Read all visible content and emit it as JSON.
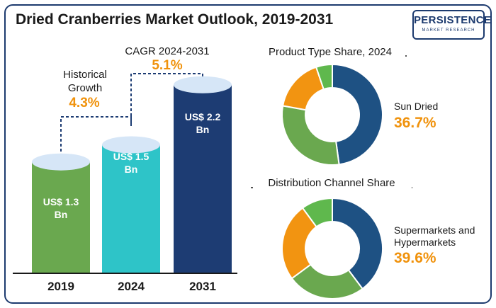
{
  "header": {
    "title": "Dried Cranberries Market Outlook, 2019-2031",
    "logo_text": "PERSISTENCE",
    "logo_subtext": "MARKET RESEARCH"
  },
  "annotations": {
    "historical_label_line1": "Historical",
    "historical_label_line2": "Growth",
    "historical_value": "4.3%",
    "cagr_label": "CAGR 2024-2031",
    "cagr_value": "5.1%"
  },
  "colors": {
    "bar_2019": "#6aa84f",
    "bar_2024": "#2ec4c8",
    "bar_2031": "#1d3c73",
    "bar_top": "#d6e6f7",
    "accent": "#f0920c",
    "donut_blue": "#1e5183",
    "donut_green": "#6aa84f",
    "donut_orange": "#f29411",
    "donut_lightgreen": "#5fb84d"
  },
  "chart_data": [
    {
      "type": "bar",
      "categories": [
        "2019",
        "2024",
        "2031"
      ],
      "values": [
        1.3,
        1.5,
        2.2
      ],
      "value_labels_line1": [
        "US$ 1.3",
        "US$ 1.5",
        "US$ 2.2"
      ],
      "value_labels_line2": [
        "Bn",
        "Bn",
        "Bn"
      ],
      "unit": "US$ Bn",
      "xlabel": "",
      "ylabel": ""
    },
    {
      "type": "pie",
      "title": "Product Type Share, 2024",
      "highlight_label": "Sun Dried",
      "highlight_value": "36.7%",
      "values": [
        36.7,
        23.0,
        13.0,
        4.0
      ]
    },
    {
      "type": "pie",
      "title": "Distribution Channel Share",
      "highlight_label_line1": "Supermarkets and",
      "highlight_label_line2": "Hypermarkets",
      "highlight_value": "39.6%",
      "values": [
        39.6,
        25.0,
        25.0,
        10.0
      ]
    }
  ]
}
